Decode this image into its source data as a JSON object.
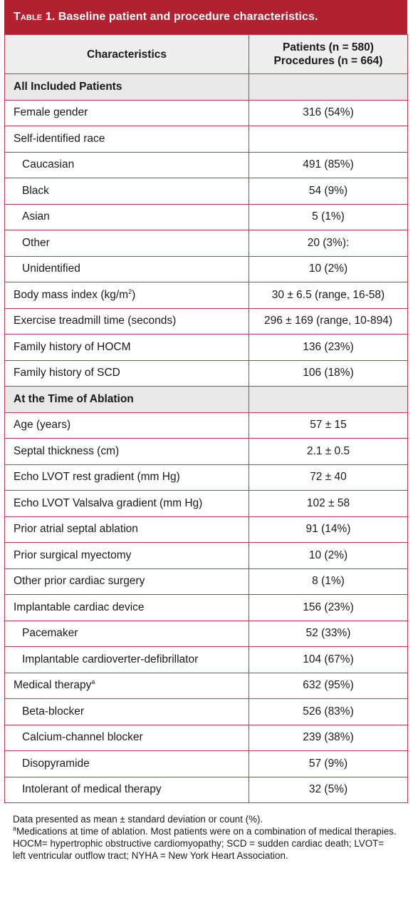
{
  "title": {
    "lead": "Table 1.",
    "text": "Baseline patient and procedure characteristics."
  },
  "header": {
    "col1": "Characteristics",
    "col2_line1": "Patients (n = 580)",
    "col2_line2": "Procedures (n = 664)"
  },
  "rows": [
    {
      "type": "section",
      "label": "All Included Patients",
      "value": ""
    },
    {
      "type": "row",
      "label": "Female gender",
      "value": "316 (54%)"
    },
    {
      "type": "row",
      "label": "Self-identified race",
      "value": ""
    },
    {
      "type": "sub",
      "label": "Caucasian",
      "value": "491 (85%)"
    },
    {
      "type": "sub",
      "label": "Black",
      "value": "54 (9%)"
    },
    {
      "type": "sub",
      "label": "Asian",
      "value": "5 (1%)"
    },
    {
      "type": "sub",
      "label": "Other",
      "value": "20 (3%):"
    },
    {
      "type": "sub",
      "label": "Unidentified",
      "value": "10 (2%)"
    },
    {
      "type": "row",
      "label": "Body mass index (kg/m",
      "sup": "2",
      "label_after": ")",
      "value": "30 ± 6.5 (range, 16-58)"
    },
    {
      "type": "row",
      "label": "Exercise treadmill time (seconds)",
      "value": "296 ± 169 (range, 10-894)"
    },
    {
      "type": "row",
      "label": "Family history of HOCM",
      "value": "136 (23%)"
    },
    {
      "type": "row",
      "label": "Family history of SCD",
      "value": "106 (18%)"
    },
    {
      "type": "section",
      "label": "At the Time of Ablation",
      "value": ""
    },
    {
      "type": "row",
      "label": "Age (years)",
      "value": "57 ± 15"
    },
    {
      "type": "row",
      "label": "Septal thickness (cm)",
      "value": "2.1 ± 0.5"
    },
    {
      "type": "row",
      "label": "Echo LVOT rest gradient (mm Hg)",
      "value": "72 ± 40"
    },
    {
      "type": "row",
      "label": "Echo LVOT Valsalva gradient (mm Hg)",
      "value": "102 ± 58"
    },
    {
      "type": "row",
      "label": "Prior atrial septal ablation",
      "value": "91 (14%)"
    },
    {
      "type": "row",
      "label": "Prior surgical myectomy",
      "value": "10 (2%)"
    },
    {
      "type": "row",
      "label": "Other prior cardiac surgery",
      "value": "8 (1%)"
    },
    {
      "type": "row",
      "label": "Implantable cardiac device",
      "value": "156 (23%)"
    },
    {
      "type": "sub",
      "label": "Pacemaker",
      "value": "52 (33%)"
    },
    {
      "type": "sub",
      "label": "Implantable cardioverter-defibrillator",
      "value": "104 (67%)"
    },
    {
      "type": "row",
      "label": "Medical therapy",
      "sup": "a",
      "label_after": "",
      "value": "632 (95%)"
    },
    {
      "type": "sub",
      "label": "Beta-blocker",
      "value": "526 (83%)"
    },
    {
      "type": "sub",
      "label": "Calcium-channel blocker",
      "value": "239 (38%)"
    },
    {
      "type": "sub",
      "label": "Disopyramide",
      "value": "57 (9%)"
    },
    {
      "type": "sub",
      "label": "Intolerant of medical therapy",
      "value": "32 (5%)"
    }
  ],
  "footnotes": {
    "line1": "Data presented as mean ± standard deviation or count (%).",
    "note_a_mark": "a",
    "note_a": "Medications at time of ablation. Most patients were on a combination of medical therapies.",
    "line3": "HOCM= hypertrophic obstructive cardiomyopathy; SCD = sudden cardiac death; LVOT= left ventricular outflow tract; NYHA = New York Heart Association."
  },
  "colors": {
    "title_bg": "#b3202f",
    "border": "#c0394a",
    "section_bg": "#e8e8e8"
  }
}
